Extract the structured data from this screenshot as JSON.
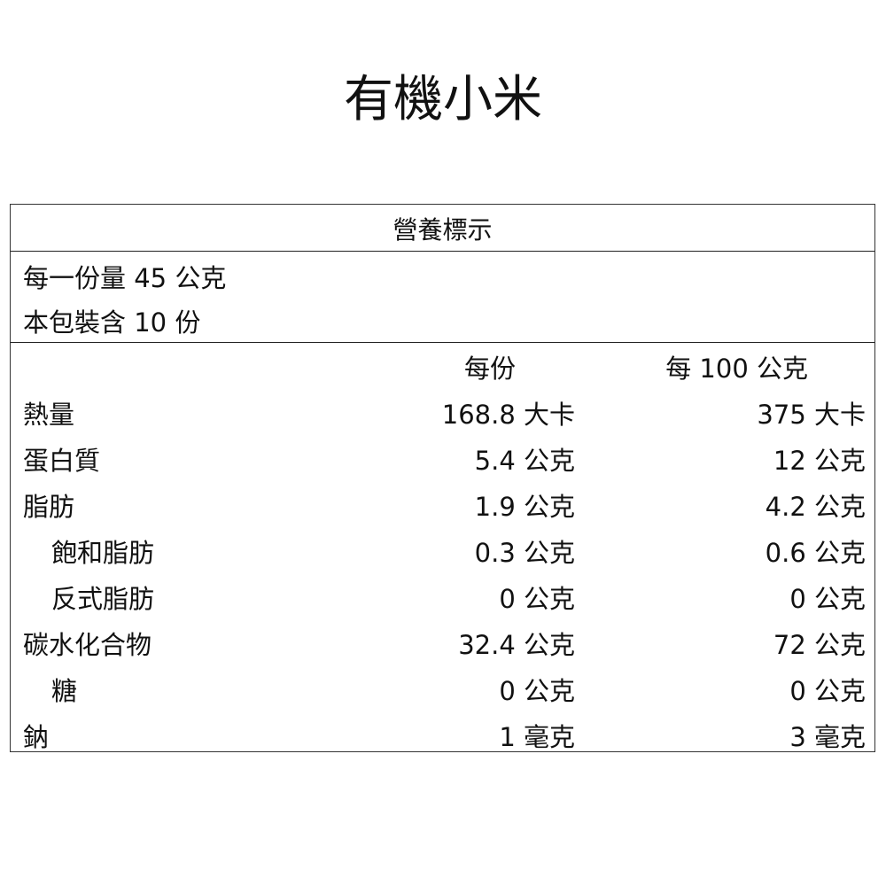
{
  "title": "有機小米",
  "label": {
    "header": "營養標示",
    "serving_size": "每一份量 45 公克",
    "servings_per_package": "本包裝含 10 份",
    "columns": [
      "每份",
      "每 100 公克"
    ],
    "rows": [
      {
        "name": "熱量",
        "per_serving": "168.8 大卡",
        "per_100g": "375 大卡",
        "indent": false
      },
      {
        "name": "蛋白質",
        "per_serving": "5.4 公克",
        "per_100g": "12 公克",
        "indent": false
      },
      {
        "name": "脂肪",
        "per_serving": "1.9 公克",
        "per_100g": "4.2 公克",
        "indent": false
      },
      {
        "name": "飽和脂肪",
        "per_serving": "0.3 公克",
        "per_100g": "0.6 公克",
        "indent": true
      },
      {
        "name": "反式脂肪",
        "per_serving": "0 公克",
        "per_100g": "0 公克",
        "indent": true
      },
      {
        "name": "碳水化合物",
        "per_serving": "32.4 公克",
        "per_100g": "72 公克",
        "indent": false
      },
      {
        "name": "糖",
        "per_serving": "0 公克",
        "per_100g": "0 公克",
        "indent": true
      },
      {
        "name": "鈉",
        "per_serving": "1 毫克",
        "per_100g": "3 毫克",
        "indent": false
      }
    ]
  }
}
